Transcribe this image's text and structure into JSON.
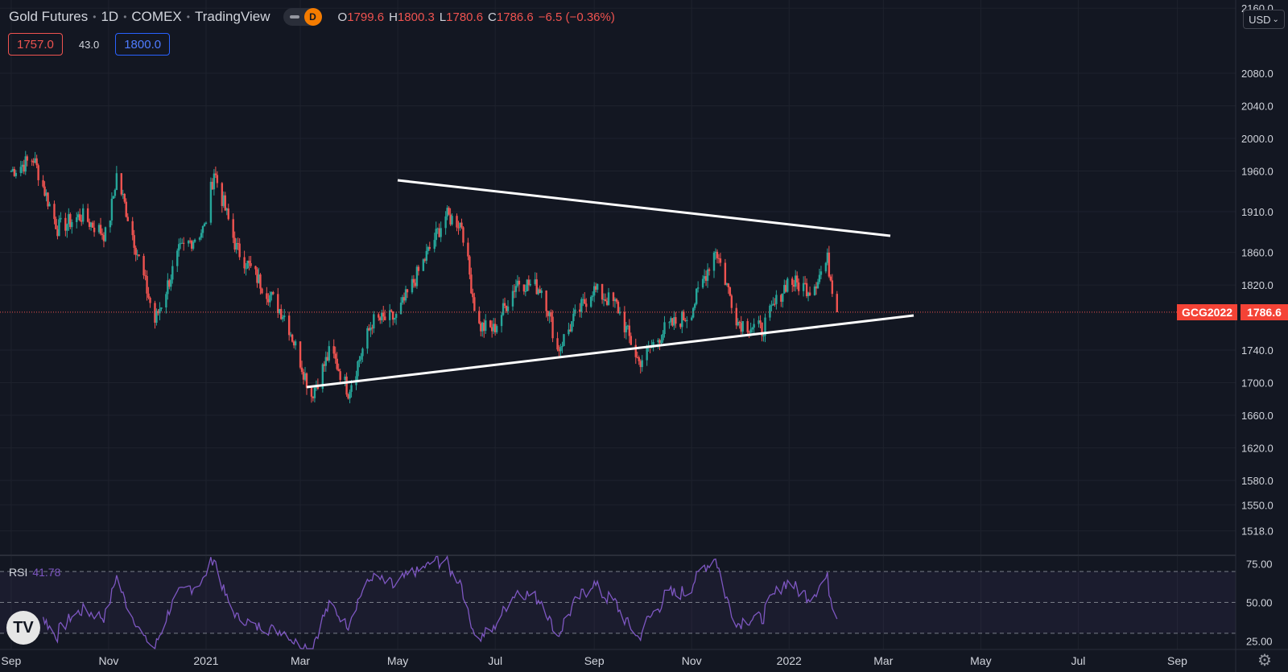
{
  "header": {
    "symbol": "Gold Futures",
    "interval": "1D",
    "exchange": "COMEX",
    "source": "TradingView",
    "mode_badge": "D",
    "ohlc": {
      "open_key": "O",
      "open": "1799.6",
      "high_key": "H",
      "high": "1800.3",
      "low_key": "L",
      "low": "1780.6",
      "close_key": "C",
      "close": "1786.6",
      "change": "−6.5 (−0.36%)"
    }
  },
  "quote_boxes": {
    "bid": "1757.0",
    "spread": "43.0",
    "ask": "1800.0"
  },
  "price_axis": {
    "currency": "USD",
    "ticks": [
      "2160.0",
      "2080.0",
      "2040.0",
      "2000.0",
      "1960.0",
      "1910.0",
      "1860.0",
      "1820.0",
      "1740.0",
      "1700.0",
      "1660.0",
      "1620.0",
      "1580.0",
      "1550.0",
      "1518.0"
    ]
  },
  "last_price": {
    "symbol": "GCG2022",
    "value": "1786.6"
  },
  "rsi": {
    "label": "RSI",
    "value": "41.78",
    "ticks": [
      "75.00",
      "50.00",
      "25.00"
    ]
  },
  "time_axis": {
    "ticks": [
      "Sep",
      "Nov",
      "2021",
      "Mar",
      "May",
      "Jul",
      "Sep",
      "Nov",
      "2022",
      "Mar",
      "May",
      "Jul",
      "Sep"
    ]
  },
  "colors": {
    "up": "#26a69a",
    "down": "#ef5350",
    "rsi": "#7e57c2",
    "background": "#131722",
    "trendline": "#ffffff"
  },
  "logo_text": "TV",
  "chart_data": {
    "type": "candlestick",
    "price_range": [
      1490,
      2170
    ],
    "rsi_range": [
      20,
      80
    ],
    "series": [
      {
        "name": "Gold Futures",
        "points": [
          {
            "date": "2020-09-01",
            "close": 1960
          },
          {
            "date": "2020-09-15",
            "close": 1975
          },
          {
            "date": "2020-09-30",
            "close": 1890
          },
          {
            "date": "2020-10-15",
            "close": 1905
          },
          {
            "date": "2020-10-31",
            "close": 1880
          },
          {
            "date": "2020-11-06",
            "close": 1955
          },
          {
            "date": "2020-11-15",
            "close": 1890
          },
          {
            "date": "2020-11-30",
            "close": 1775
          },
          {
            "date": "2020-12-15",
            "close": 1860
          },
          {
            "date": "2020-12-31",
            "close": 1890
          },
          {
            "date": "2021-01-06",
            "close": 1960
          },
          {
            "date": "2021-01-20",
            "close": 1865
          },
          {
            "date": "2021-02-05",
            "close": 1820
          },
          {
            "date": "2021-02-20",
            "close": 1780
          },
          {
            "date": "2021-03-08",
            "close": 1685
          },
          {
            "date": "2021-03-20",
            "close": 1740
          },
          {
            "date": "2021-03-31",
            "close": 1690
          },
          {
            "date": "2021-04-15",
            "close": 1775
          },
          {
            "date": "2021-04-30",
            "close": 1780
          },
          {
            "date": "2021-05-15",
            "close": 1840
          },
          {
            "date": "2021-05-31",
            "close": 1905
          },
          {
            "date": "2021-06-10",
            "close": 1895
          },
          {
            "date": "2021-06-20",
            "close": 1770
          },
          {
            "date": "2021-06-30",
            "close": 1765
          },
          {
            "date": "2021-07-15",
            "close": 1825
          },
          {
            "date": "2021-07-31",
            "close": 1815
          },
          {
            "date": "2021-08-09",
            "close": 1740
          },
          {
            "date": "2021-08-20",
            "close": 1780
          },
          {
            "date": "2021-08-31",
            "close": 1815
          },
          {
            "date": "2021-09-15",
            "close": 1795
          },
          {
            "date": "2021-09-29",
            "close": 1725
          },
          {
            "date": "2021-10-15",
            "close": 1765
          },
          {
            "date": "2021-10-31",
            "close": 1785
          },
          {
            "date": "2021-11-16",
            "close": 1865
          },
          {
            "date": "2021-11-30",
            "close": 1775
          },
          {
            "date": "2021-12-15",
            "close": 1765
          },
          {
            "date": "2021-12-31",
            "close": 1825
          },
          {
            "date": "2022-01-15",
            "close": 1815
          },
          {
            "date": "2022-01-25",
            "close": 1850
          },
          {
            "date": "2022-01-31",
            "close": 1786.6
          }
        ]
      }
    ]
  }
}
